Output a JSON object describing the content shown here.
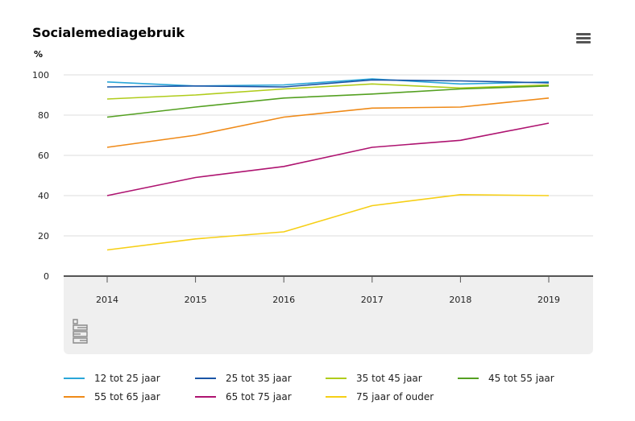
{
  "chart_data": {
    "type": "line",
    "title": "Socialemediagebruik",
    "ylabel": "%",
    "xlabel": "",
    "ylim": [
      0,
      100
    ],
    "yticks": [
      0,
      20,
      40,
      60,
      80,
      100
    ],
    "grid": true,
    "legend_position": "bottom",
    "categories": [
      "2014",
      "2015",
      "2016",
      "2017",
      "2018",
      "2019"
    ],
    "series": [
      {
        "name": "12 tot 25 jaar",
        "color": "#2aa6d8",
        "values": [
          96.5,
          94.5,
          95,
          98,
          95.5,
          96.5
        ]
      },
      {
        "name": "25 tot 35 jaar",
        "color": "#1a55a6",
        "values": [
          94,
          94.5,
          94,
          97.5,
          97,
          96
        ]
      },
      {
        "name": "35 tot 45 jaar",
        "color": "#b0cc1b",
        "values": [
          88,
          90,
          93,
          95.5,
          93.5,
          95
        ]
      },
      {
        "name": "45 tot 55 jaar",
        "color": "#54a021",
        "values": [
          79,
          84,
          88.5,
          90.5,
          93,
          94.5
        ]
      },
      {
        "name": "55 tot 65 jaar",
        "color": "#ef8a18",
        "values": [
          64,
          70,
          79,
          83.5,
          84,
          88.5
        ]
      },
      {
        "name": "65 tot 75 jaar",
        "color": "#ae1370",
        "values": [
          40,
          49,
          54.5,
          64,
          67.5,
          76
        ]
      },
      {
        "name": "75 jaar of ouder",
        "color": "#f6cf15",
        "values": [
          13,
          18.5,
          22,
          35,
          40.5,
          40
        ]
      }
    ]
  },
  "toolbar": {
    "menu_icon": "hamburger-menu-icon"
  },
  "logo": {
    "icon": "cbs-logo-icon"
  }
}
